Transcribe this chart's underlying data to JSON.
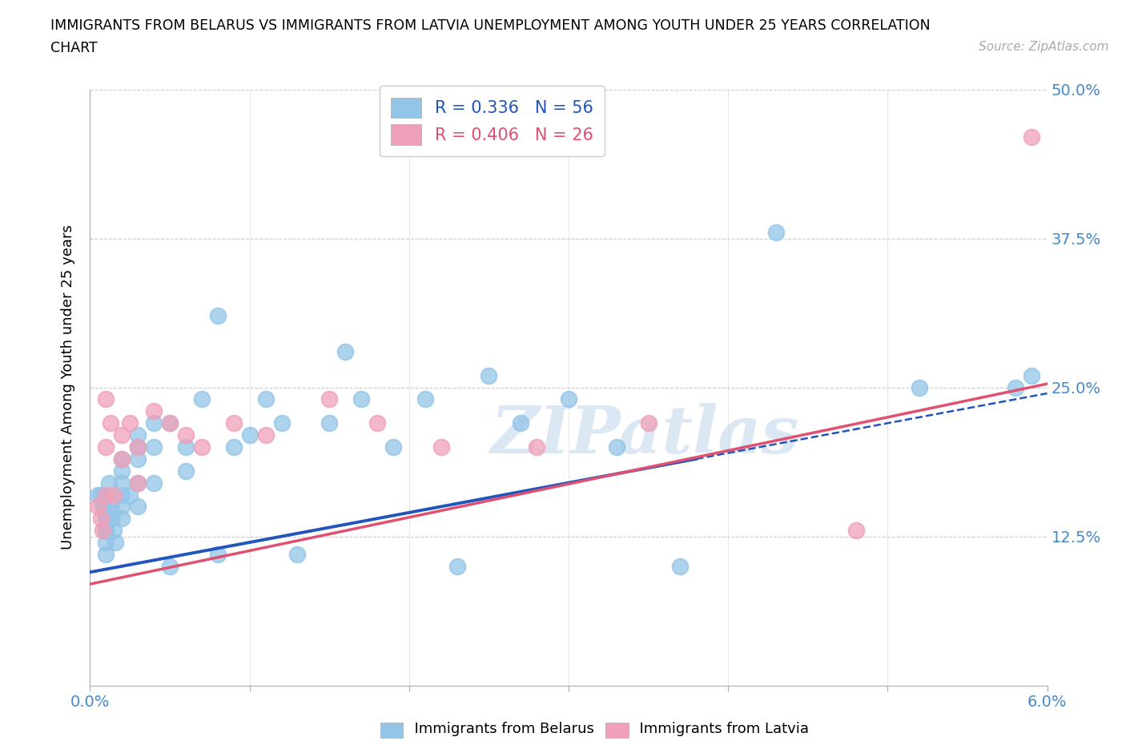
{
  "title_line1": "IMMIGRANTS FROM BELARUS VS IMMIGRANTS FROM LATVIA UNEMPLOYMENT AMONG YOUTH UNDER 25 YEARS CORRELATION",
  "title_line2": "CHART",
  "source": "Source: ZipAtlas.com",
  "ylabel": "Unemployment Among Youth under 25 years",
  "xlim": [
    0.0,
    0.06
  ],
  "ylim": [
    0.0,
    0.5
  ],
  "yticks": [
    0.0,
    0.125,
    0.25,
    0.375,
    0.5
  ],
  "yticklabels_right": [
    "",
    "12.5%",
    "25.0%",
    "37.5%",
    "50.0%"
  ],
  "belarus_color": "#92C5E8",
  "latvia_color": "#F0A0B8",
  "line_belarus_color": "#2255BB",
  "line_latvia_color": "#E05070",
  "R_belarus": 0.336,
  "N_belarus": 56,
  "R_latvia": 0.406,
  "N_latvia": 26,
  "belarus_x": [
    0.0005,
    0.0007,
    0.0008,
    0.0009,
    0.001,
    0.001,
    0.001,
    0.001,
    0.001,
    0.0012,
    0.0013,
    0.0014,
    0.0015,
    0.0016,
    0.002,
    0.002,
    0.002,
    0.002,
    0.002,
    0.002,
    0.0025,
    0.003,
    0.003,
    0.003,
    0.003,
    0.003,
    0.004,
    0.004,
    0.004,
    0.005,
    0.005,
    0.006,
    0.006,
    0.007,
    0.008,
    0.008,
    0.009,
    0.01,
    0.011,
    0.012,
    0.013,
    0.015,
    0.016,
    0.017,
    0.019,
    0.021,
    0.023,
    0.025,
    0.027,
    0.03,
    0.033,
    0.037,
    0.043,
    0.052,
    0.058,
    0.059
  ],
  "belarus_y": [
    0.16,
    0.16,
    0.15,
    0.15,
    0.14,
    0.13,
    0.13,
    0.12,
    0.11,
    0.17,
    0.15,
    0.14,
    0.13,
    0.12,
    0.19,
    0.18,
    0.17,
    0.16,
    0.15,
    0.14,
    0.16,
    0.21,
    0.2,
    0.19,
    0.17,
    0.15,
    0.22,
    0.2,
    0.17,
    0.22,
    0.1,
    0.2,
    0.18,
    0.24,
    0.31,
    0.11,
    0.2,
    0.21,
    0.24,
    0.22,
    0.11,
    0.22,
    0.28,
    0.24,
    0.2,
    0.24,
    0.1,
    0.26,
    0.22,
    0.24,
    0.2,
    0.1,
    0.38,
    0.25,
    0.25,
    0.26
  ],
  "latvia_x": [
    0.0005,
    0.0007,
    0.0008,
    0.001,
    0.001,
    0.001,
    0.0013,
    0.0015,
    0.002,
    0.002,
    0.0025,
    0.003,
    0.003,
    0.004,
    0.005,
    0.006,
    0.007,
    0.009,
    0.011,
    0.015,
    0.018,
    0.022,
    0.028,
    0.035,
    0.048,
    0.059
  ],
  "latvia_y": [
    0.15,
    0.14,
    0.13,
    0.24,
    0.2,
    0.16,
    0.22,
    0.16,
    0.21,
    0.19,
    0.22,
    0.2,
    0.17,
    0.23,
    0.22,
    0.21,
    0.2,
    0.22,
    0.21,
    0.24,
    0.22,
    0.2,
    0.2,
    0.22,
    0.13,
    0.46
  ],
  "watermark_text": "ZIPatlas",
  "background_color": "#FFFFFF",
  "grid_color": "#CCCCCC",
  "line_belarus_intercept": 0.095,
  "line_belarus_slope": 2.5,
  "line_latvia_intercept": 0.085,
  "line_latvia_slope": 2.8
}
